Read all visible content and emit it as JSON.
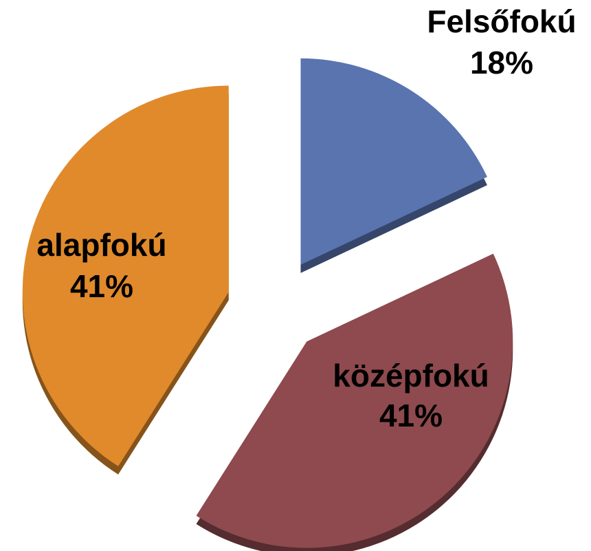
{
  "chart_data": {
    "type": "pie",
    "categories": [
      "Felsőfokú",
      "középfokú",
      "alapfokú"
    ],
    "values": [
      18,
      41,
      41
    ],
    "value_labels": [
      "18%",
      "41%",
      "41%"
    ],
    "colors": [
      "#5a74b0",
      "#8e4a4e",
      "#e08a2c"
    ]
  }
}
